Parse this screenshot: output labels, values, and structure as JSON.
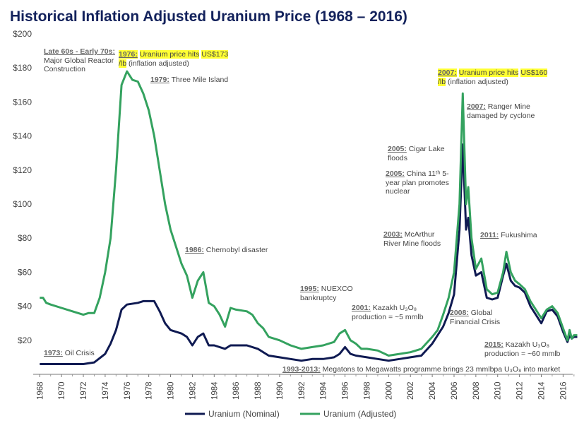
{
  "chart_data": {
    "type": "line",
    "title": "Historical Inflation Adjusted Uranium Price (1968 – 2016)",
    "xlim": [
      1967.4,
      2017.4
    ],
    "xticks": [
      1968,
      1970,
      1972,
      1974,
      1976,
      1978,
      1980,
      1982,
      1984,
      1986,
      1988,
      1990,
      1992,
      1994,
      1996,
      1998,
      2000,
      2002,
      2004,
      2006,
      2008,
      2010,
      2012,
      2014,
      2016
    ],
    "ylim": [
      0,
      200
    ],
    "yticks": [
      {
        "value": 20,
        "label": "$20"
      },
      {
        "value": 40,
        "label": "$40"
      },
      {
        "value": 60,
        "label": "$60"
      },
      {
        "value": 80,
        "label": "$80"
      },
      {
        "value": 100,
        "label": "$100"
      },
      {
        "value": 120,
        "label": "$120"
      },
      {
        "value": 140,
        "label": "$140"
      },
      {
        "value": 160,
        "label": "$160"
      },
      {
        "value": 180,
        "label": "$180"
      },
      {
        "value": 200,
        "label": "$200"
      }
    ],
    "legend": "bottom",
    "series": [
      {
        "name": "Uranium (Nominal)",
        "color": "#0f1a52",
        "x": [
          1968,
          1972,
          1973,
          1974,
          1974.5,
          1975,
          1975.5,
          1976,
          1977,
          1977.5,
          1978.5,
          1979,
          1979.5,
          1980,
          1981,
          1981.5,
          1982,
          1982.5,
          1983,
          1983.5,
          1984,
          1985,
          1985.5,
          1986,
          1987,
          1988,
          1989,
          1990,
          1991,
          1992,
          1993,
          1994,
          1995,
          1995.5,
          1996,
          1996.5,
          1997,
          1998,
          1999,
          2000,
          2001,
          2002,
          2003,
          2004,
          2005,
          2005.5,
          2006,
          2006.5,
          2006.8,
          2007.1,
          2007.3,
          2007.6,
          2008,
          2008.5,
          2009,
          2009.5,
          2010,
          2010.5,
          2010.8,
          2011.2,
          2011.6,
          2012,
          2012.5,
          2013,
          2013.5,
          2014,
          2014.5,
          2015,
          2015.5,
          2016,
          2016.4,
          2016.6,
          2016.8,
          2017,
          2017.3
        ],
        "values": [
          6,
          6,
          7,
          12,
          18,
          26,
          38,
          41,
          42,
          43,
          43,
          37,
          30,
          26,
          24,
          22,
          17,
          22,
          24,
          17,
          17,
          15,
          17,
          17,
          17,
          15,
          11,
          10,
          9,
          8,
          9,
          9,
          10,
          12,
          16,
          12,
          11,
          10,
          9,
          8,
          9,
          10,
          11,
          18,
          28,
          36,
          47,
          85,
          135,
          85,
          92,
          70,
          58,
          60,
          45,
          44,
          45,
          58,
          65,
          55,
          52,
          51,
          48,
          40,
          35,
          30,
          37,
          38,
          34,
          25,
          19,
          23,
          21,
          22,
          22
        ]
      },
      {
        "name": "Uranium (Adjusted)",
        "color": "#34a25f",
        "x": [
          1968,
          1968.3,
          1968.6,
          1969,
          1970,
          1971,
          1972,
          1972.5,
          1973,
          1973.5,
          1974,
          1974.5,
          1975,
          1975.5,
          1976,
          1976.5,
          1977,
          1977.5,
          1978,
          1978.5,
          1979,
          1979.5,
          1980,
          1980.5,
          1981,
          1981.5,
          1982,
          1982.5,
          1983,
          1983.5,
          1984,
          1984.5,
          1985,
          1985.5,
          1986,
          1987,
          1987.5,
          1988,
          1988.5,
          1989,
          1990,
          1991,
          1992,
          1993,
          1994,
          1995,
          1995.5,
          1996,
          1996.5,
          1997,
          1997.5,
          1998,
          1999,
          2000,
          2001,
          2002,
          2003,
          2004,
          2004.5,
          2005,
          2005.5,
          2006,
          2006.5,
          2006.8,
          2007.1,
          2007.3,
          2007.6,
          2008,
          2008.5,
          2009,
          2009.5,
          2010,
          2010.5,
          2010.8,
          2011.2,
          2011.6,
          2012,
          2012.5,
          2013,
          2013.5,
          2014,
          2014.5,
          2015,
          2015.5,
          2016,
          2016.4,
          2016.6,
          2016.8,
          2017,
          2017.3
        ],
        "values": [
          45,
          45,
          42,
          41,
          39,
          37,
          35,
          36,
          36,
          45,
          60,
          80,
          120,
          170,
          178,
          173,
          172,
          165,
          155,
          140,
          120,
          100,
          85,
          75,
          65,
          58,
          45,
          55,
          60,
          42,
          40,
          35,
          28,
          39,
          38,
          37,
          35,
          30,
          27,
          22,
          20,
          17,
          15,
          16,
          17,
          19,
          24,
          26,
          20,
          18,
          15,
          15,
          14,
          11,
          12,
          13,
          15,
          22,
          26,
          35,
          45,
          60,
          100,
          165,
          100,
          110,
          80,
          62,
          68,
          50,
          47,
          48,
          60,
          72,
          60,
          55,
          53,
          50,
          43,
          38,
          33,
          38,
          40,
          36,
          27,
          20,
          26,
          21,
          23,
          23
        ]
      }
    ],
    "annotations": [
      {
        "label": "Late 60s - Early 70s:",
        "text": [
          "Major Global Reactor Construction"
        ]
      },
      {
        "label": "1976:",
        "text": [
          "Uranium price hits",
          "US$173 /lb",
          "(inflation adjusted)"
        ]
      },
      {
        "label": "1979:",
        "text": [
          "Three Mile Island"
        ]
      },
      {
        "label": "1986:",
        "text": [
          "Chernobyl disaster"
        ]
      },
      {
        "label": "1973:",
        "text": [
          "Oil Crisis"
        ]
      },
      {
        "label": "1995:",
        "text": [
          "NUEXCO bankruptcy"
        ]
      },
      {
        "label": "2001:",
        "text": [
          "Kazakh U₃O₈ production = ~5 mmlb"
        ]
      },
      {
        "label": "1993-2013:",
        "text": [
          "Megatons to Megawatts programme brings 23 mmlbpa U₃O₈ into market"
        ]
      },
      {
        "label": "2003:",
        "text": [
          "McArthur River Mine floods"
        ]
      },
      {
        "label": "2005:",
        "text": [
          "China 11ᵗʰ 5-year plan promotes nuclear"
        ]
      },
      {
        "label": "2005:",
        "text": [
          "Cigar Lake floods"
        ]
      },
      {
        "label": "2007:",
        "text": [
          "Uranium price hits",
          "US$160 /lb",
          "(inflation adjusted)"
        ]
      },
      {
        "label": "2007:",
        "text": [
          "Ranger Mine damaged by cyclone"
        ]
      },
      {
        "label": "2011:",
        "text": [
          "Fukushima"
        ]
      },
      {
        "label": "2008:",
        "text": [
          "Global Financial Crisis"
        ]
      },
      {
        "label": "2015:",
        "text": [
          "Kazakh U₃O₈ production = ~60 mmlb"
        ]
      }
    ]
  }
}
